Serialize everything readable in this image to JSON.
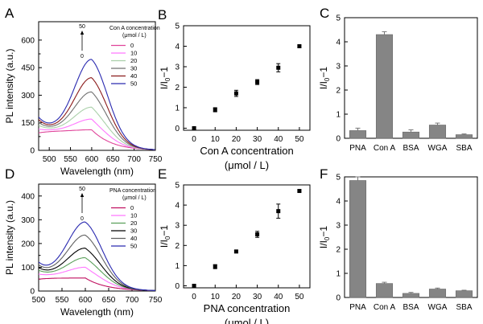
{
  "panel_labels": [
    "A",
    "B",
    "C",
    "D",
    "E",
    "F"
  ],
  "chart_data": [
    {
      "panel": "A",
      "type": "line",
      "xlabel": "Wavelength (nm)",
      "ylabel": "PL intensity (a.u.)",
      "xlim": [
        475,
        750
      ],
      "ylim": [
        0,
        700
      ],
      "xticks": [
        500,
        550,
        600,
        650,
        700,
        750
      ],
      "yticks": [
        0,
        150,
        300,
        450,
        600
      ],
      "yticks_minor": [
        75,
        225,
        375,
        525
      ],
      "legend_title": "Con A concentration\n(μmol / L)",
      "arrow_labels": {
        "top": "50",
        "bottom": "0"
      },
      "series": [
        {
          "name": "0",
          "color": "#e0449a",
          "baseline": 105,
          "peak": 112,
          "center": 600,
          "width": 40,
          "start": 95
        },
        {
          "name": "10",
          "color": "#ff77ff",
          "baseline": 105,
          "peak": 170,
          "center": 600,
          "width": 40,
          "start": 115
        },
        {
          "name": "20",
          "color": "#aad0aa",
          "baseline": 105,
          "peak": 235,
          "center": 600,
          "width": 40,
          "start": 135
        },
        {
          "name": "30",
          "color": "#707070",
          "baseline": 105,
          "peak": 318,
          "center": 600,
          "width": 40,
          "start": 150
        },
        {
          "name": "40",
          "color": "#8b1a1a",
          "baseline": 105,
          "peak": 395,
          "center": 600,
          "width": 40,
          "start": 165
        },
        {
          "name": "50",
          "color": "#2a2ab0",
          "baseline": 105,
          "peak": 495,
          "center": 600,
          "width": 40,
          "start": 178
        }
      ]
    },
    {
      "panel": "B",
      "type": "scatter",
      "xlabel": "Con A concentration\n(μmol / L)",
      "ylabel": "I/I0−1",
      "xlim": [
        -5,
        55
      ],
      "ylim": [
        -0.1,
        5
      ],
      "xticks": [
        0,
        10,
        20,
        30,
        40,
        50
      ],
      "yticks": [
        0,
        1,
        2,
        3,
        4,
        5
      ],
      "x": [
        0,
        10,
        20,
        30,
        40,
        50
      ],
      "y": [
        0.0,
        0.9,
        1.7,
        2.25,
        2.95,
        4.0
      ],
      "err": [
        0.05,
        0.1,
        0.15,
        0.12,
        0.2,
        0.05
      ]
    },
    {
      "panel": "C",
      "type": "bar",
      "ylabel": "I/I0−1",
      "ylim": [
        0,
        5
      ],
      "yticks": [
        0,
        1,
        2,
        3,
        4,
        5
      ],
      "categories": [
        "PNA",
        "Con A",
        "BSA",
        "WGA",
        "SBA"
      ],
      "values": [
        0.32,
        4.3,
        0.26,
        0.55,
        0.15
      ],
      "err": [
        0.1,
        0.12,
        0.09,
        0.08,
        0.03
      ]
    },
    {
      "panel": "D",
      "type": "line",
      "xlabel": "Wavelength (nm)",
      "ylabel": "PL intensity (a.u.)",
      "xlim": [
        500,
        750
      ],
      "ylim": [
        0,
        450
      ],
      "xticks": [
        500,
        550,
        600,
        650,
        700,
        750
      ],
      "yticks": [
        0,
        100,
        200,
        300,
        400
      ],
      "yticks_minor": [
        50,
        150,
        250,
        350
      ],
      "legend_title": "PNA concentration\n(μmol / L)",
      "arrow_labels": {
        "top": "50",
        "bottom": "0"
      },
      "series": [
        {
          "name": "0",
          "color": "#c01060",
          "baseline": 55,
          "peak": 55,
          "center": 600,
          "width": 38,
          "start": 50
        },
        {
          "name": "10",
          "color": "#ff77ff",
          "baseline": 60,
          "peak": 100,
          "center": 600,
          "width": 38,
          "start": 70
        },
        {
          "name": "20",
          "color": "#5aa05a",
          "baseline": 60,
          "peak": 140,
          "center": 600,
          "width": 38,
          "start": 85
        },
        {
          "name": "30",
          "color": "#000000",
          "baseline": 60,
          "peak": 180,
          "center": 600,
          "width": 38,
          "start": 95
        },
        {
          "name": "40",
          "color": "#606060",
          "baseline": 60,
          "peak": 235,
          "center": 600,
          "width": 38,
          "start": 105
        },
        {
          "name": "50",
          "color": "#2a2ab0",
          "baseline": 60,
          "peak": 290,
          "center": 600,
          "width": 38,
          "start": 115
        }
      ]
    },
    {
      "panel": "E",
      "type": "scatter",
      "xlabel": "PNA concentration\n(μmol / L)",
      "ylabel": "I/I0−1",
      "xlim": [
        -5,
        55
      ],
      "ylim": [
        -0.1,
        5
      ],
      "xticks": [
        0,
        10,
        20,
        30,
        40,
        50
      ],
      "yticks": [
        0,
        1,
        2,
        3,
        4,
        5
      ],
      "x": [
        0,
        10,
        20,
        30,
        40,
        50
      ],
      "y": [
        0.0,
        0.95,
        1.7,
        2.55,
        3.7,
        4.7
      ],
      "err": [
        0.05,
        0.1,
        0.05,
        0.15,
        0.35,
        0.05
      ]
    },
    {
      "panel": "F",
      "type": "bar",
      "ylabel": "I/I0−1",
      "ylim": [
        0,
        5
      ],
      "yticks": [
        0,
        1,
        2,
        3,
        4,
        5
      ],
      "categories": [
        "PNA",
        "Con A",
        "BSA",
        "WGA",
        "SBA"
      ],
      "values": [
        4.85,
        0.58,
        0.17,
        0.35,
        0.28
      ],
      "err": [
        0.15,
        0.05,
        0.04,
        0.04,
        0.02
      ]
    }
  ]
}
